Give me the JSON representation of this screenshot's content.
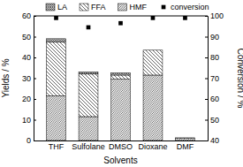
{
  "chart_data": {
    "type": "bar",
    "stacked": true,
    "categories": [
      "THF",
      "Sulfolane",
      "DMSO",
      "Dioxane",
      "DMF"
    ],
    "x_label": "Solvents",
    "y_label": "Yields / %",
    "y2_label": "Conversion / %",
    "series": [
      {
        "name": "LA",
        "color": "#000000",
        "values": [
          1.5,
          1,
          1,
          0,
          0
        ]
      },
      {
        "name": "FFA",
        "color": "#000000",
        "values": [
          26,
          20.5,
          2,
          12,
          0.3
        ]
      },
      {
        "name": "HMF",
        "color": "#000000",
        "values": [
          21.5,
          11.5,
          29.5,
          31.5,
          1
        ]
      },
      {
        "name": "conversion",
        "type": "scatter",
        "marker": "square",
        "axis": "y2",
        "color": "#000000",
        "values": [
          99,
          94.5,
          96.5,
          99,
          99
        ]
      }
    ],
    "ylim": [
      0,
      60
    ],
    "yticks": [
      0,
      10,
      20,
      30,
      40,
      50,
      60
    ],
    "y2lim": [
      40,
      100
    ],
    "y2ticks": [
      40,
      50,
      60,
      70,
      80,
      90,
      100
    ],
    "legend": "top"
  }
}
